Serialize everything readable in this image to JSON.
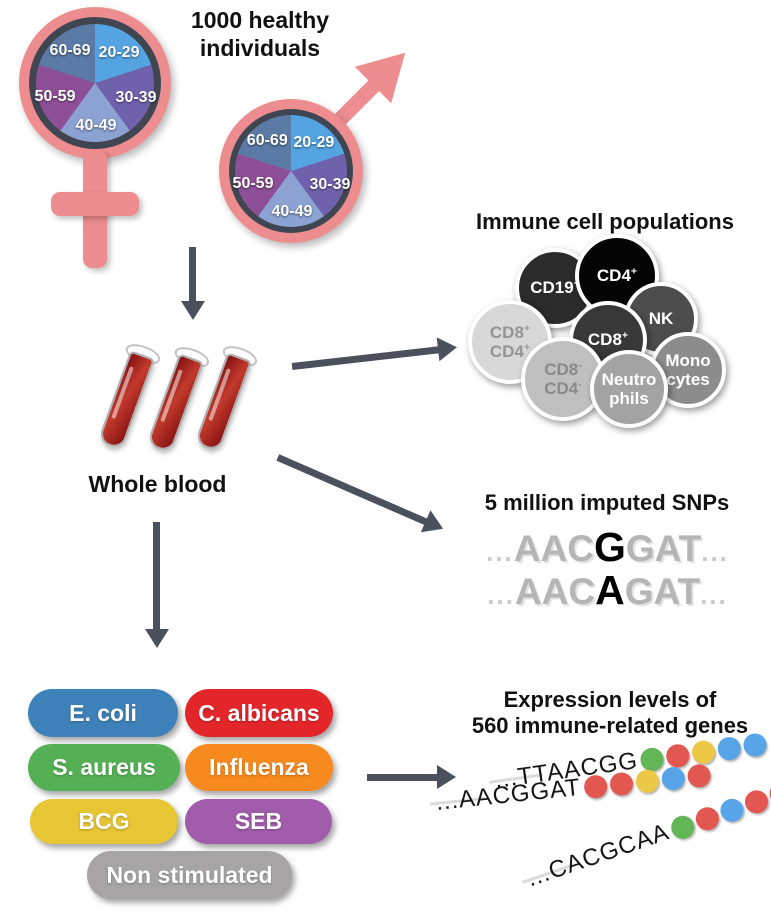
{
  "figure": {
    "cohort_title": "1000 healthy\nindividuals",
    "age_groups": [
      "20-29",
      "30-39",
      "40-49",
      "50-59",
      "60-69"
    ],
    "age_colors": [
      "#55a4e2",
      "#7061ad",
      "#8ba2d3",
      "#8d4f97",
      "#5b7aa6"
    ],
    "symbol_pink": "#ee8d90",
    "pie_ring_color": "#3f4651",
    "arrow_color": "#4a515c"
  },
  "whole_blood": {
    "label": "Whole blood",
    "tube_color": "#a81f1f"
  },
  "immune_cells": {
    "title": "Immune cell populations",
    "cells": [
      {
        "label": "CD19+",
        "bg": "#2b2b2b",
        "fg": "#ffffff"
      },
      {
        "label": "CD4+",
        "bg": "#050505",
        "fg": "#ffffff"
      },
      {
        "label": "NK",
        "bg": "#4d4d4d",
        "fg": "#ffffff"
      },
      {
        "label": "CD8+\nCD4+",
        "bg": "#d8d8d8",
        "fg": "#949494"
      },
      {
        "label": "CD8+",
        "bg": "#383838",
        "fg": "#ffffff"
      },
      {
        "label": "Mono\ncytes",
        "bg": "#8c8c8c",
        "fg": "#ffffff"
      },
      {
        "label": "CD8-\nCD4-",
        "bg": "#bfbfbf",
        "fg": "#8a8a8a"
      },
      {
        "label": "Neutro\nphils",
        "bg": "#a3a3a3",
        "fg": "#ffffff"
      }
    ]
  },
  "snps": {
    "title": "5 million imputed SNPs",
    "sequences": [
      {
        "prefix": "...",
        "before": "AAC",
        "snp": "G",
        "after": "GAT",
        "suffix": "..."
      },
      {
        "prefix": "...",
        "before": "AAC",
        "snp": "A",
        "after": "GAT",
        "suffix": "..."
      }
    ]
  },
  "stimuli": {
    "items": [
      {
        "label": "E. coli",
        "color": "#3e81b8"
      },
      {
        "label": "C. albicans",
        "color": "#e2262a"
      },
      {
        "label": "S. aureus",
        "color": "#55b055"
      },
      {
        "label": "Influenza",
        "color": "#f68a1e"
      },
      {
        "label": "BCG",
        "color": "#e6c634"
      },
      {
        "label": "SEB",
        "color": "#a15dab"
      },
      {
        "label": "Non stimulated",
        "color": "#a6a4a5"
      }
    ]
  },
  "expression": {
    "title": "Expression levels of\n560 immune-related genes",
    "dot_colors": {
      "green": "#62b656",
      "red": "#e2574f",
      "yellow": "#ecc846",
      "blue": "#58a4e8"
    },
    "rows": [
      {
        "sequence": "...TTAACGG",
        "dots": [
          "green",
          "red",
          "yellow",
          "blue",
          "blue"
        ]
      },
      {
        "sequence": "...AACGGAT",
        "dots": [
          "red",
          "red",
          "yellow",
          "blue",
          "red"
        ]
      },
      {
        "sequence": "...CACGCAA",
        "dots": [
          "green",
          "red",
          "blue",
          "red",
          "red"
        ]
      }
    ]
  }
}
